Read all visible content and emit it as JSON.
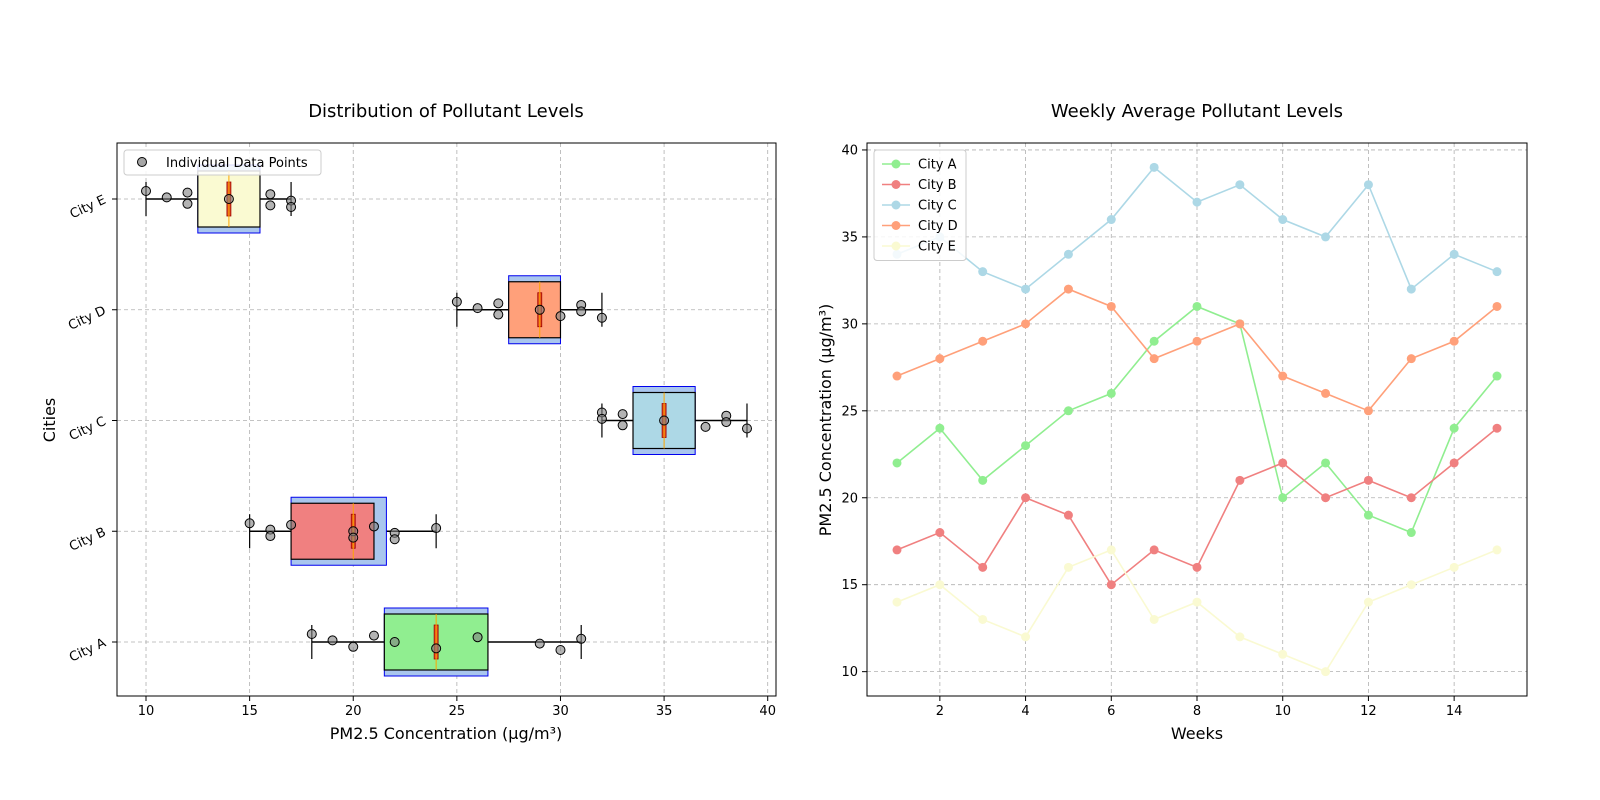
{
  "figure": {
    "suptitle": ""
  },
  "chart_data": [
    {
      "type": "boxplot",
      "orientation": "horizontal",
      "title": "Distribution of Pollutant Levels",
      "xlabel": "PM2.5 Concentration (µg/m³)",
      "ylabel": "Cities",
      "xlim": [
        8.6,
        40.4
      ],
      "xticks": [
        10,
        15,
        20,
        25,
        30,
        35,
        40
      ],
      "grid": true,
      "legend": {
        "placement": "top-left",
        "entries": [
          "Individual Data Points"
        ]
      },
      "categories": [
        "City A",
        "City B",
        "City C",
        "City D",
        "City E"
      ],
      "boxes": [
        {
          "name": "City A",
          "color": "#90EE90",
          "whisker_low": 18,
          "q1": 21.5,
          "median": 24,
          "q3": 26.5,
          "whisker_high": 31,
          "notch_low": 21.5,
          "notch_high": 26.5,
          "points": [
            18,
            19,
            20,
            21,
            22,
            24,
            26,
            29,
            30,
            31
          ]
        },
        {
          "name": "City B",
          "color": "#F08080",
          "whisker_low": 15,
          "q1": 17,
          "median": 20,
          "q3": 21,
          "whisker_high": 24,
          "notch_low": 17,
          "notch_high": 21.6,
          "points": [
            15,
            16,
            16,
            17,
            20,
            20,
            21,
            22,
            22,
            24
          ]
        },
        {
          "name": "City C",
          "color": "#ADD8E6",
          "whisker_low": 32,
          "q1": 33.5,
          "median": 35,
          "q3": 36.5,
          "whisker_high": 39,
          "notch_low": 33.5,
          "notch_high": 36.5,
          "points": [
            32,
            32,
            33,
            33,
            35,
            37,
            38,
            38,
            39
          ]
        },
        {
          "name": "City D",
          "color": "#FFA07A",
          "whisker_low": 25,
          "q1": 27.5,
          "median": 29,
          "q3": 30,
          "whisker_high": 32,
          "notch_low": 27.5,
          "notch_high": 30,
          "points": [
            25,
            26,
            27,
            27,
            29,
            30,
            31,
            31,
            32
          ]
        },
        {
          "name": "City E",
          "color": "#FAFAD2",
          "whisker_low": 10,
          "q1": 12.5,
          "median": 14,
          "q3": 15.5,
          "whisker_high": 17,
          "notch_low": 12.5,
          "notch_high": 15.5,
          "points": [
            10,
            11,
            12,
            12,
            14,
            16,
            16,
            17,
            17
          ]
        }
      ]
    },
    {
      "type": "line",
      "title": "Weekly Average Pollutant Levels",
      "xlabel": "Weeks",
      "ylabel": "PM2.5 Concentration (µg/m³)",
      "xlim": [
        0.3,
        15.7
      ],
      "ylim": [
        8.6,
        40.4
      ],
      "xticks": [
        2,
        4,
        6,
        8,
        10,
        12,
        14
      ],
      "yticks": [
        10,
        15,
        20,
        25,
        30,
        35,
        40
      ],
      "grid": true,
      "legend": {
        "placement": "top-left"
      },
      "x": [
        1,
        2,
        3,
        4,
        5,
        6,
        7,
        8,
        9,
        10,
        11,
        12,
        13,
        14,
        15
      ],
      "series": [
        {
          "name": "City A",
          "color": "#90EE90",
          "values": [
            22,
            24,
            21,
            23,
            25,
            26,
            29,
            31,
            30,
            20,
            22,
            19,
            18,
            24,
            27
          ]
        },
        {
          "name": "City B",
          "color": "#F08080",
          "values": [
            17,
            18,
            16,
            20,
            19,
            15,
            17,
            16,
            21,
            22,
            20,
            21,
            20,
            22,
            24
          ]
        },
        {
          "name": "City C",
          "color": "#ADD8E6",
          "values": [
            34,
            35,
            33,
            32,
            34,
            36,
            39,
            37,
            38,
            36,
            35,
            38,
            32,
            34,
            33
          ]
        },
        {
          "name": "City D",
          "color": "#FFA07A",
          "values": [
            27,
            28,
            29,
            30,
            32,
            31,
            28,
            29,
            30,
            27,
            26,
            25,
            28,
            29,
            31
          ]
        },
        {
          "name": "City E",
          "color": "#FAFAD2",
          "values": [
            14,
            15,
            13,
            12,
            16,
            17,
            13,
            14,
            12,
            11,
            10,
            14,
            15,
            16,
            17
          ]
        }
      ]
    }
  ]
}
